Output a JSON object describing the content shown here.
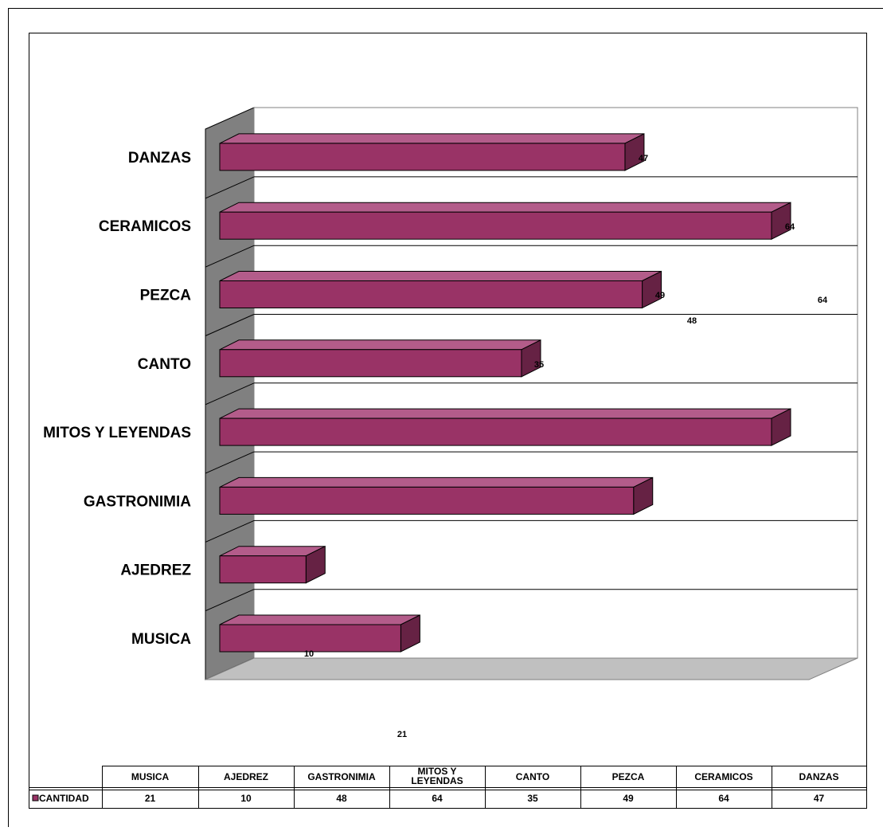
{
  "chart_data": {
    "type": "bar",
    "orientation": "horizontal",
    "three_d": true,
    "categories": [
      "MUSICA",
      "AJEDREZ",
      "GASTRONIMIA",
      "MITOS Y LEYENDAS",
      "CANTO",
      "PEZCA",
      "CERAMICOS",
      "DANZAS"
    ],
    "series": [
      {
        "name": "CANTIDAD",
        "values": [
          21,
          10,
          48,
          64,
          35,
          49,
          64,
          47
        ],
        "color": "#993366"
      }
    ],
    "xlim": [
      0,
      70
    ],
    "grid": true,
    "legend": "data-table-bottom",
    "data_table": {
      "headers": [
        "MUSICA",
        "AJEDREZ",
        "GASTRONIMIA",
        "MITOS Y LEYENDAS",
        "CANTO",
        "PEZCA",
        "CERAMICOS",
        "DANZAS"
      ],
      "row_label": "CANTIDAD",
      "values": [
        "21",
        "10",
        "48",
        "64",
        "35",
        "49",
        "64",
        "47"
      ]
    },
    "data_labels": [
      {
        "category": "MUSICA",
        "text": "21"
      },
      {
        "category": "AJEDREZ",
        "text": "10"
      },
      {
        "category": "GASTRONIMIA",
        "text": "48"
      },
      {
        "category": "MITOS Y LEYENDAS",
        "text": "64"
      },
      {
        "category": "CANTO",
        "text": "35"
      },
      {
        "category": "PEZCA",
        "text": "49"
      },
      {
        "category": "CERAMICOS",
        "text": "64"
      },
      {
        "category": "DANZAS",
        "text": "47"
      }
    ]
  }
}
